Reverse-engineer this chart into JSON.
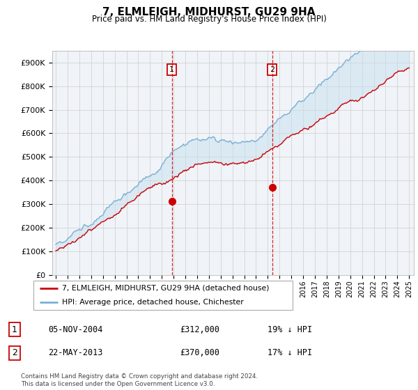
{
  "title": "7, ELMLEIGH, MIDHURST, GU29 9HA",
  "subtitle": "Price paid vs. HM Land Registry's House Price Index (HPI)",
  "ylim": [
    0,
    950000
  ],
  "yticks": [
    0,
    100000,
    200000,
    300000,
    400000,
    500000,
    600000,
    700000,
    800000,
    900000
  ],
  "ytick_labels": [
    "£0",
    "£100K",
    "£200K",
    "£300K",
    "£400K",
    "£500K",
    "£600K",
    "£700K",
    "£800K",
    "£900K"
  ],
  "legend_labels": [
    "7, ELMLEIGH, MIDHURST, GU29 9HA (detached house)",
    "HPI: Average price, detached house, Chichester"
  ],
  "legend_colors": [
    "#cc0000",
    "#7ab0d4"
  ],
  "transaction1": {
    "label": "1",
    "date": "05-NOV-2004",
    "price": "£312,000",
    "pct": "19% ↓ HPI",
    "year": 2004.85,
    "price_val": 312000
  },
  "transaction2": {
    "label": "2",
    "date": "22-MAY-2013",
    "price": "£370,000",
    "pct": "17% ↓ HPI",
    "year": 2013.38,
    "price_val": 370000
  },
  "footer": "Contains HM Land Registry data © Crown copyright and database right 2024.\nThis data is licensed under the Open Government Licence v3.0.",
  "background_color": "#ffffff",
  "grid_color": "#cccccc",
  "plot_bg": "#f0f4f8",
  "fill_color": "#c8dff0",
  "hpi_color": "#7ab0d4",
  "red_color": "#cc0000"
}
